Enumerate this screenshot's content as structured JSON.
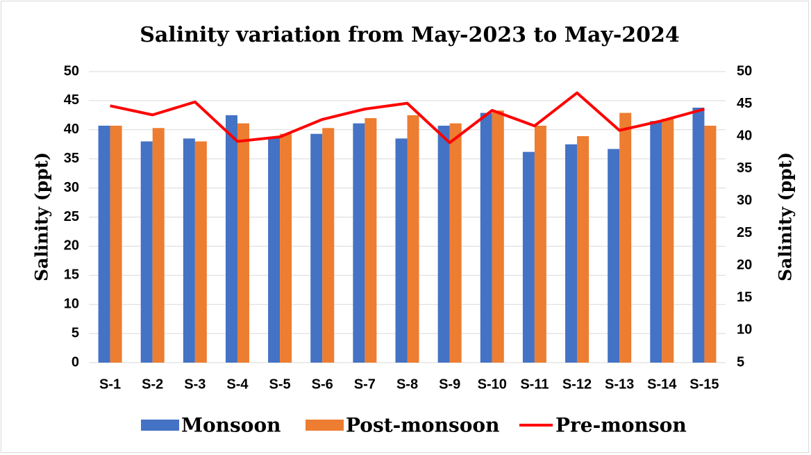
{
  "chart_data": {
    "type": "bar_line",
    "title": "Salinity variation from May-2023 to May-2024",
    "y_label": "Salinity (ppt)",
    "y2_label": "Salinity (ppt)",
    "categories": [
      "S-1",
      "S-2",
      "S-3",
      "S-4",
      "S-5",
      "S-6",
      "S-7",
      "S-8",
      "S-9",
      "S-10",
      "S-11",
      "S-12",
      "S-13",
      "S-14",
      "S-15"
    ],
    "series": [
      {
        "name": "Monsoon",
        "type": "bar",
        "color": "#4472c4",
        "values": [
          40.7,
          38,
          38.5,
          42.5,
          38.8,
          39.3,
          41.1,
          38.5,
          40.7,
          42.9,
          36.2,
          37.5,
          36.7,
          41.5,
          43.8
        ]
      },
      {
        "name": "Post-monsoon",
        "type": "bar",
        "color": "#ed7d31",
        "values": [
          40.7,
          40.3,
          38,
          41.1,
          39.3,
          40.3,
          42,
          42.5,
          41.1,
          43.3,
          40.7,
          38.9,
          42.9,
          41.9,
          40.7
        ]
      },
      {
        "name": "Pre-monson",
        "type": "line",
        "axis": "y2",
        "color": "#ff0000",
        "values": [
          44.7,
          43.3,
          45.3,
          39.2,
          39.9,
          42.6,
          44.2,
          45.1,
          39.0,
          44.0,
          41.6,
          46.7,
          40.9,
          42.4,
          44.2
        ]
      }
    ],
    "ylim": [
      0,
      50
    ],
    "yticks": [
      0,
      5,
      10,
      15,
      20,
      25,
      30,
      35,
      40,
      45,
      50
    ],
    "y2lim": [
      5,
      50
    ],
    "y2ticks": [
      5,
      10,
      15,
      20,
      25,
      30,
      35,
      40,
      45,
      50
    ],
    "grid": true,
    "legend": "bottom"
  }
}
